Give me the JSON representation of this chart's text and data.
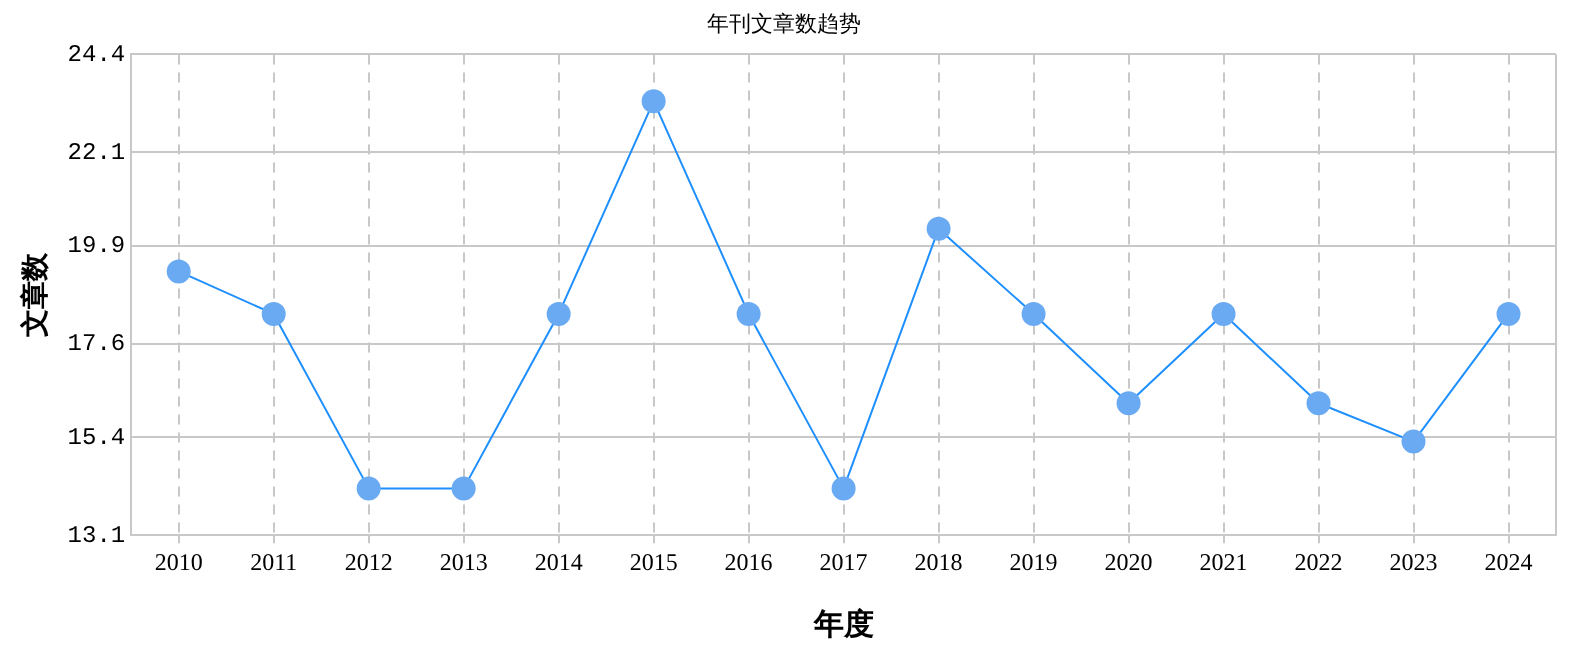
{
  "chart_data": {
    "type": "line",
    "title": "年刊文章数趋势",
    "xlabel": "年度",
    "ylabel": "文章数",
    "categories": [
      "2010",
      "2011",
      "2012",
      "2013",
      "2014",
      "2015",
      "2016",
      "2017",
      "2018",
      "2019",
      "2020",
      "2021",
      "2022",
      "2023",
      "2024"
    ],
    "series": [
      {
        "color": "#1e8fff",
        "values": [
          19.3,
          18.3,
          14.2,
          14.2,
          18.3,
          23.3,
          18.3,
          14.2,
          20.3,
          18.3,
          16.2,
          18.3,
          16.2,
          15.3,
          18.3
        ]
      }
    ],
    "ylim": [
      13.1,
      24.4
    ],
    "yticks": [
      13.1,
      15.4,
      17.6,
      19.9,
      22.1,
      24.4
    ],
    "grid": true,
    "legend": false,
    "marker": "circle",
    "line_style": "solid"
  }
}
